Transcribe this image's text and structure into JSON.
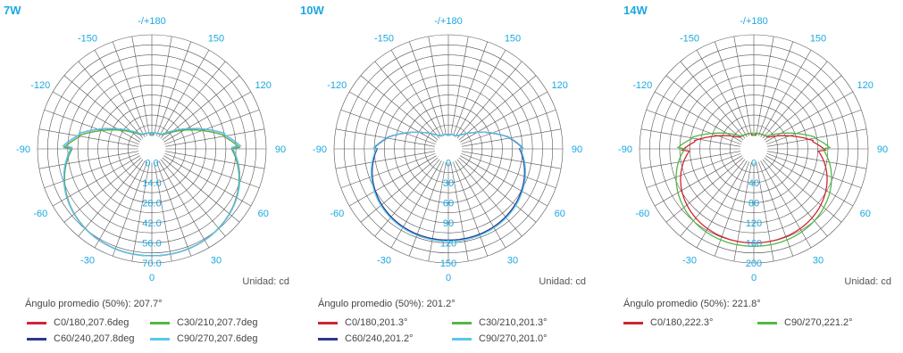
{
  "colors": {
    "red": "#d02535",
    "green": "#52b843",
    "navy": "#2e3790",
    "lightblue": "#5bc8ec",
    "angle_label": "#1ba8e0",
    "ring_label": "#1ba8e0",
    "grid": "#555555"
  },
  "chart_data": [
    {
      "type": "polar",
      "title": "7W",
      "angle_labels": [
        "-/+180",
        "150",
        "120",
        "90",
        "60",
        "30",
        "0",
        "-30",
        "-60",
        "-90",
        "-120",
        "-150"
      ],
      "ring_labels": [
        "0.0",
        "14.0",
        "28.0",
        "42.0",
        "56.0",
        "70.0"
      ],
      "rmax": 84,
      "unit_label": "Unidad: cd",
      "caption": "Ángulo promedio (50%): 207.7°",
      "series": [
        {
          "name": "C0/180,207.6deg",
          "color": "#d02535",
          "peak": 78,
          "spread": 0.62,
          "edge": 40,
          "tilt": 0
        },
        {
          "name": "C30/210,207.7deg",
          "color": "#52b843",
          "peak": 78,
          "spread": 0.62,
          "edge": 40,
          "tilt": 0
        },
        {
          "name": "C60/240,207.8deg",
          "color": "#2e3790",
          "peak": 78,
          "spread": 0.62,
          "edge": 40,
          "tilt": -3
        },
        {
          "name": "C90/270,207.6deg",
          "color": "#5bc8ec",
          "peak": 78,
          "spread": 0.62,
          "edge": 40,
          "tilt": -3
        }
      ]
    },
    {
      "type": "polar",
      "title": "10W",
      "angle_labels": [
        "-/+180",
        "150",
        "120",
        "90",
        "60",
        "30",
        "0",
        "-30",
        "-60",
        "-90",
        "-120",
        "-150"
      ],
      "ring_labels": [
        "0",
        "30",
        "60",
        "90",
        "120",
        "150"
      ],
      "rmax": 180,
      "unit_label": "Unidad: cd",
      "caption": "Ángulo promedio (50%): 201.2°",
      "series": [
        {
          "name": "C0/180,201.3°",
          "color": "#d02535",
          "peak": 140,
          "spread": 0.55,
          "edge": 36,
          "tilt": 0
        },
        {
          "name": "C30/210,201.3°",
          "color": "#52b843",
          "peak": 140,
          "spread": 0.55,
          "edge": 36,
          "tilt": 0
        },
        {
          "name": "C60/240,201.2°",
          "color": "#2e3790",
          "peak": 139,
          "spread": 0.55,
          "edge": 36,
          "tilt": 0
        },
        {
          "name": "C90/270,201.0°",
          "color": "#5bc8ec",
          "peak": 141,
          "spread": 0.55,
          "edge": 35,
          "tilt": 0
        }
      ]
    },
    {
      "type": "polar",
      "title": "14W",
      "angle_labels": [
        "-/+180",
        "150",
        "120",
        "90",
        "60",
        "30",
        "0",
        "-30",
        "-60",
        "-90",
        "-120",
        "-150"
      ],
      "ring_labels": [
        "0",
        "40",
        "80",
        "120",
        "160",
        "200"
      ],
      "rmax": 240,
      "unit_label": "Unidad: cd",
      "caption": "Ángulo promedio (50%): 221.8°",
      "series": [
        {
          "name": "C0/180,222.3°",
          "color": "#d02535",
          "peak": 192,
          "spread": 0.78,
          "edge": 105,
          "tilt": 4
        },
        {
          "name": "C90/270,221.2°",
          "color": "#52b843",
          "peak": 200,
          "spread": 0.72,
          "edge": 102,
          "tilt": 0
        }
      ]
    }
  ]
}
